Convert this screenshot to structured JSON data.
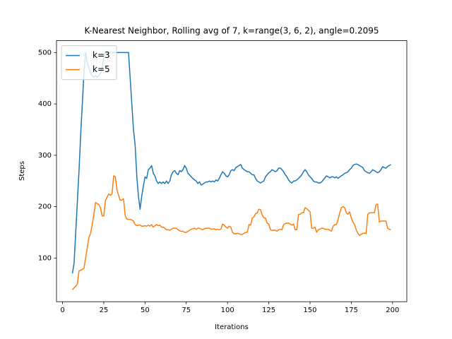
{
  "chart_data": {
    "type": "line",
    "title": "K-Nearest Neighbor, Rolling avg of 7, k=range(3, 6, 2), angle=0.2095",
    "x_label": "Iterations",
    "y_label": "Steps",
    "x": [
      6,
      7,
      8,
      9,
      10,
      11,
      12,
      13,
      14,
      15,
      16,
      17,
      18,
      19,
      20,
      21,
      22,
      23,
      24,
      25,
      26,
      27,
      28,
      29,
      30,
      31,
      32,
      33,
      34,
      35,
      36,
      37,
      38,
      39,
      40,
      41,
      42,
      43,
      44,
      45,
      46,
      47,
      48,
      49,
      50,
      51,
      52,
      53,
      54,
      55,
      56,
      57,
      58,
      59,
      60,
      61,
      62,
      63,
      64,
      65,
      66,
      67,
      68,
      69,
      70,
      71,
      72,
      73,
      74,
      75,
      76,
      77,
      78,
      79,
      80,
      81,
      82,
      83,
      84,
      85,
      86,
      87,
      88,
      89,
      90,
      91,
      92,
      93,
      94,
      95,
      96,
      97,
      98,
      99,
      100,
      101,
      102,
      103,
      104,
      105,
      106,
      107,
      108,
      109,
      110,
      111,
      112,
      113,
      114,
      115,
      116,
      117,
      118,
      119,
      120,
      121,
      122,
      123,
      124,
      125,
      126,
      127,
      128,
      129,
      130,
      131,
      132,
      133,
      134,
      135,
      136,
      137,
      138,
      139,
      140,
      141,
      142,
      143,
      144,
      145,
      146,
      147,
      148,
      149,
      150,
      151,
      152,
      153,
      154,
      155,
      156,
      157,
      158,
      159,
      160,
      161,
      162,
      163,
      164,
      165,
      166,
      167,
      168,
      169,
      170,
      171,
      172,
      173,
      174,
      175,
      176,
      177,
      178,
      179,
      180,
      181,
      182,
      183,
      184,
      185,
      186,
      187,
      188,
      189,
      190,
      191,
      192,
      193,
      194,
      195,
      196,
      197,
      198,
      199
    ],
    "series": [
      {
        "name": "k=3",
        "color": "#1f77b4",
        "values": [
          70,
          90,
          150,
          210,
          270,
          340,
          400,
          460,
          500,
          480,
          470,
          460,
          455,
          452,
          455,
          452,
          455,
          460,
          470,
          490,
          500,
          500,
          500,
          500,
          500,
          500,
          500,
          500,
          500,
          500,
          500,
          500,
          500,
          500,
          500,
          450,
          400,
          350,
          320,
          260,
          220,
          195,
          220,
          240,
          258,
          255,
          272,
          275,
          280,
          265,
          260,
          250,
          245,
          248,
          245,
          248,
          245,
          250,
          245,
          250,
          262,
          268,
          270,
          265,
          262,
          270,
          268,
          272,
          280,
          275,
          265,
          262,
          258,
          255,
          252,
          250,
          245,
          248,
          242,
          244,
          246,
          248,
          248,
          250,
          248,
          250,
          248,
          252,
          250,
          255,
          262,
          268,
          265,
          260,
          258,
          262,
          270,
          272,
          270,
          276,
          278,
          280,
          282,
          275,
          272,
          270,
          268,
          268,
          265,
          262,
          262,
          255,
          250,
          248,
          246,
          248,
          250,
          258,
          262,
          266,
          268,
          272,
          270,
          268,
          270,
          275,
          275,
          272,
          268,
          262,
          258,
          252,
          248,
          246,
          250,
          250,
          252,
          255,
          258,
          262,
          268,
          272,
          268,
          262,
          258,
          255,
          250,
          248,
          248,
          246,
          246,
          248,
          252,
          256,
          260,
          258,
          256,
          258,
          258,
          256,
          258,
          255,
          258,
          260,
          262,
          265,
          266,
          268,
          272,
          275,
          280,
          282,
          283,
          282,
          280,
          278,
          276,
          270,
          268,
          266,
          265,
          268,
          272,
          270,
          268,
          266,
          268,
          272,
          278,
          276,
          275,
          278,
          280,
          282
        ]
      },
      {
        "name": "k=5",
        "color": "#ff7f0e",
        "values": [
          38,
          42,
          45,
          50,
          75,
          76,
          78,
          80,
          100,
          120,
          140,
          148,
          165,
          185,
          208,
          206,
          204,
          198,
          182,
          182,
          212,
          218,
          225,
          222,
          225,
          260,
          258,
          232,
          222,
          212,
          213,
          215,
          182,
          176,
          175,
          175,
          174,
          172,
          165,
          163,
          164,
          164,
          162,
          162,
          163,
          162,
          164,
          162,
          165,
          160,
          163,
          165,
          163,
          164,
          160,
          160,
          158,
          155,
          155,
          154,
          156,
          158,
          158,
          158,
          155,
          153,
          152,
          152,
          150,
          150,
          152,
          154,
          156,
          157,
          158,
          156,
          158,
          158,
          156,
          155,
          157,
          158,
          158,
          158,
          156,
          156,
          157,
          155,
          156,
          155,
          156,
          166,
          164,
          160,
          158,
          162,
          160,
          150,
          147,
          147,
          148,
          147,
          146,
          146,
          148,
          150,
          150,
          165,
          164,
          178,
          180,
          186,
          188,
          195,
          194,
          184,
          178,
          178,
          168,
          166,
          155,
          154,
          154,
          154,
          152,
          155,
          156,
          155,
          165,
          167,
          168,
          168,
          166,
          164,
          166,
          155,
          155,
          185,
          185,
          188,
          188,
          198,
          196,
          193,
          190,
          158,
          158,
          160,
          150,
          155,
          156,
          158,
          158,
          156,
          156,
          156,
          154,
          152,
          162,
          165,
          165,
          175,
          188,
          198,
          200,
          198,
          188,
          185,
          190,
          178,
          170,
          165,
          155,
          148,
          144,
          146,
          148,
          148,
          148,
          185,
          188,
          188,
          188,
          188,
          204,
          205,
          170,
          172,
          172,
          172,
          172,
          158,
          156,
          155
        ]
      }
    ],
    "xlim": [
      -3.65,
      208.65
    ],
    "xticks": [
      0,
      25,
      50,
      75,
      100,
      125,
      150,
      175,
      200
    ],
    "ylim": [
      14.9,
      523.1
    ],
    "yticks": [
      100,
      200,
      300,
      400,
      500
    ],
    "legend": "upper left"
  }
}
